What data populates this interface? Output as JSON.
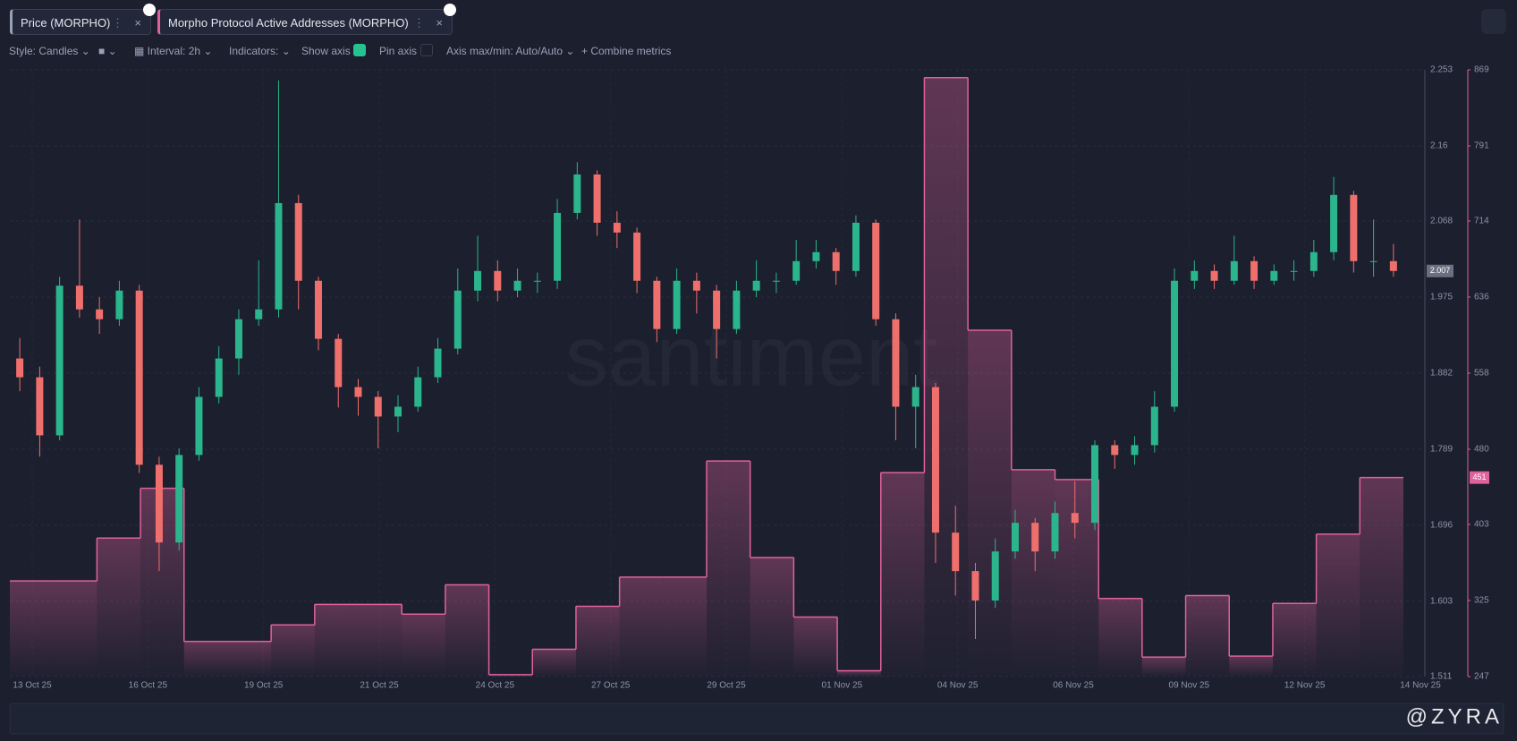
{
  "ui": {
    "toolbar": {
      "style": "Style: Candles",
      "interval": "Interval: 2h",
      "indicators": "Indicators:",
      "show_axis": "Show axis",
      "pin_axis": "Pin axis",
      "axis_range": "Axis max/min: Auto/Auto",
      "combine": "Combine metrics"
    },
    "watermark": "@ZYRA"
  },
  "chart_data": {
    "type": "candlestick",
    "watermark": "santiment",
    "grid": true,
    "xticks": [
      "13 Oct 25",
      "16 Oct 25",
      "19 Oct 25",
      "21 Oct 25",
      "24 Oct 25",
      "27 Oct 25",
      "29 Oct 25",
      "01 Nov 25",
      "04 Nov 25",
      "06 Nov 25",
      "09 Nov 25",
      "12 Nov 25",
      "14 Nov 25"
    ],
    "ylim": [
      1.511,
      2.253
    ],
    "yticks": [
      1.511,
      1.603,
      1.696,
      1.789,
      1.882,
      1.975,
      2.068,
      2.16,
      2.253
    ],
    "y2lim": [
      247,
      869
    ],
    "y2ticks": [
      247,
      325,
      403,
      480,
      558,
      636,
      714,
      791,
      869
    ],
    "candles": {
      "name": "Price (MORPHO)",
      "up_color": "#2bb58c",
      "down_color": "#ef6f6c",
      "open": [
        1.9,
        1.877,
        1.806,
        1.989,
        1.96,
        1.948,
        1.983,
        1.77,
        1.675,
        1.782,
        1.853,
        1.9,
        1.948,
        1.96,
        2.09,
        1.995,
        1.924,
        1.865,
        1.853,
        1.829,
        1.841,
        1.877,
        1.912,
        1.983,
        2.007,
        1.983,
        1.995,
        1.995,
        2.078,
        2.125,
        2.066,
        2.054,
        1.995,
        1.936,
        1.995,
        1.983,
        1.936,
        1.983,
        1.995,
        1.995,
        2.019,
        2.03,
        2.007,
        2.066,
        1.948,
        1.841,
        1.865,
        1.687,
        1.64,
        1.604,
        1.664,
        1.699,
        1.664,
        1.711,
        1.699,
        1.794,
        1.782,
        1.794,
        1.841,
        1.995,
        2.007,
        1.995,
        2.019,
        1.995,
        2.007,
        2.007,
        2.03,
        2.1,
        2.019,
        2.019
      ],
      "high": [
        1.925,
        1.89,
        2.0,
        2.07,
        1.975,
        1.995,
        1.99,
        1.78,
        1.79,
        1.865,
        1.915,
        1.96,
        2.02,
        2.24,
        2.1,
        2.0,
        1.93,
        1.875,
        1.86,
        1.855,
        1.89,
        1.925,
        2.01,
        2.05,
        2.02,
        2.01,
        2.005,
        2.095,
        2.14,
        2.13,
        2.08,
        2.06,
        2.0,
        2.01,
        2.005,
        1.99,
        1.995,
        2.02,
        2.005,
        2.045,
        2.045,
        2.035,
        2.075,
        2.07,
        1.955,
        1.88,
        1.87,
        1.72,
        1.65,
        1.68,
        1.715,
        1.705,
        1.725,
        1.75,
        1.8,
        1.8,
        1.805,
        1.86,
        2.01,
        2.02,
        2.015,
        2.05,
        2.025,
        2.015,
        2.02,
        2.045,
        2.122,
        2.105,
        2.07,
        2.04
      ],
      "low": [
        1.86,
        1.78,
        1.8,
        1.95,
        1.93,
        1.94,
        1.76,
        1.64,
        1.665,
        1.775,
        1.845,
        1.88,
        1.94,
        1.95,
        1.96,
        1.91,
        1.84,
        1.83,
        1.79,
        1.81,
        1.835,
        1.87,
        1.905,
        1.97,
        1.97,
        1.975,
        1.98,
        1.985,
        2.07,
        2.05,
        2.035,
        1.98,
        1.92,
        1.93,
        1.955,
        1.9,
        1.93,
        1.975,
        1.98,
        1.99,
        2.01,
        1.99,
        2.0,
        1.94,
        1.8,
        1.79,
        1.65,
        1.61,
        1.557,
        1.595,
        1.655,
        1.64,
        1.655,
        1.68,
        1.69,
        1.765,
        1.77,
        1.785,
        1.835,
        1.985,
        1.985,
        1.99,
        1.985,
        1.99,
        1.995,
        2.0,
        2.02,
        2.005,
        2.0,
        2.0
      ],
      "close": [
        1.877,
        1.806,
        1.989,
        1.96,
        1.948,
        1.983,
        1.77,
        1.675,
        1.782,
        1.853,
        1.9,
        1.948,
        1.96,
        2.09,
        1.995,
        1.924,
        1.865,
        1.853,
        1.829,
        1.841,
        1.877,
        1.912,
        1.983,
        2.007,
        1.983,
        1.995,
        1.995,
        2.078,
        2.125,
        2.066,
        2.054,
        1.995,
        1.936,
        1.995,
        1.983,
        1.936,
        1.983,
        1.995,
        1.995,
        2.019,
        2.03,
        2.007,
        2.066,
        1.948,
        1.841,
        1.865,
        1.687,
        1.64,
        1.604,
        1.664,
        1.699,
        1.664,
        1.711,
        1.699,
        1.794,
        1.782,
        1.794,
        1.841,
        1.995,
        2.007,
        1.995,
        2.019,
        1.995,
        2.007,
        2.007,
        2.03,
        2.1,
        2.019,
        2.019,
        2.007
      ]
    },
    "series": [
      {
        "name": "Morpho Protocol Active Addresses (MORPHO)",
        "color": "#e0629c",
        "axis": "y2",
        "type": "step",
        "values": [
          345,
          345,
          389,
          440,
          283,
          283,
          300,
          321,
          321,
          311,
          341,
          249,
          275,
          319,
          349,
          349,
          468,
          369,
          308,
          253,
          456,
          861,
          602,
          459,
          449,
          327,
          267,
          330,
          268,
          322,
          393,
          451
        ]
      }
    ]
  }
}
